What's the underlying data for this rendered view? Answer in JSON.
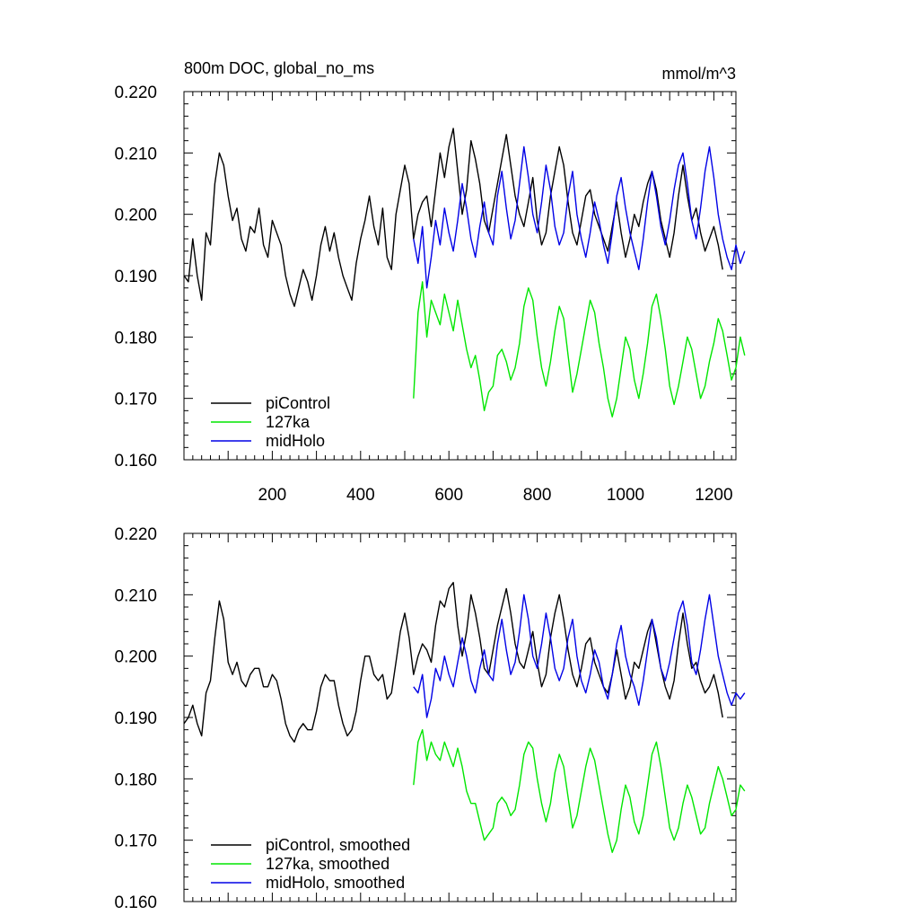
{
  "chart_data": [
    {
      "type": "line",
      "title": "800m DOC, global_no_ms",
      "units": "mmol/m^3",
      "xlim": [
        0,
        1250
      ],
      "ylim": [
        0.16,
        0.22
      ],
      "xticks": [
        200,
        400,
        600,
        800,
        1000,
        1200
      ],
      "xtick_labels": [
        "200",
        "400",
        "600",
        "800",
        "1000",
        "1200"
      ],
      "yticks": [
        0.16,
        0.17,
        0.18,
        0.19,
        0.2,
        0.21,
        0.22
      ],
      "ytick_labels": [
        "0.160",
        "0.170",
        "0.180",
        "0.190",
        "0.200",
        "0.210",
        "0.220"
      ],
      "legend": "bottom-left",
      "series": [
        {
          "name": "piControl",
          "color": "#000000",
          "x_start": 0,
          "x_step": 10,
          "values": [
            0.19,
            0.189,
            0.196,
            0.19,
            0.186,
            0.197,
            0.195,
            0.205,
            0.21,
            0.208,
            0.203,
            0.199,
            0.201,
            0.196,
            0.194,
            0.198,
            0.197,
            0.201,
            0.195,
            0.193,
            0.199,
            0.197,
            0.195,
            0.19,
            0.187,
            0.185,
            0.188,
            0.191,
            0.189,
            0.186,
            0.19,
            0.195,
            0.198,
            0.194,
            0.197,
            0.193,
            0.19,
            0.188,
            0.186,
            0.192,
            0.196,
            0.199,
            0.203,
            0.198,
            0.195,
            0.201,
            0.193,
            0.191,
            0.2,
            0.204,
            0.208,
            0.205,
            0.196,
            0.2,
            0.202,
            0.203,
            0.198,
            0.204,
            0.21,
            0.206,
            0.211,
            0.214,
            0.207,
            0.2,
            0.204,
            0.212,
            0.209,
            0.205,
            0.199,
            0.197,
            0.201,
            0.205,
            0.209,
            0.213,
            0.208,
            0.203,
            0.2,
            0.198,
            0.202,
            0.206,
            0.199,
            0.195,
            0.197,
            0.203,
            0.207,
            0.211,
            0.208,
            0.202,
            0.197,
            0.195,
            0.199,
            0.203,
            0.204,
            0.2,
            0.198,
            0.196,
            0.194,
            0.198,
            0.202,
            0.197,
            0.193,
            0.196,
            0.2,
            0.198,
            0.202,
            0.205,
            0.207,
            0.204,
            0.199,
            0.196,
            0.193,
            0.197,
            0.203,
            0.208,
            0.203,
            0.199,
            0.201,
            0.197,
            0.194,
            0.196,
            0.198,
            0.195,
            0.191
          ]
        },
        {
          "name": "127ka",
          "color": "#00e600",
          "x_start": 520,
          "x_step": 10,
          "values": [
            0.17,
            0.184,
            0.189,
            0.18,
            0.186,
            0.184,
            0.182,
            0.187,
            0.184,
            0.181,
            0.186,
            0.182,
            0.178,
            0.175,
            0.177,
            0.173,
            0.168,
            0.171,
            0.172,
            0.177,
            0.178,
            0.176,
            0.173,
            0.175,
            0.179,
            0.185,
            0.188,
            0.186,
            0.18,
            0.175,
            0.172,
            0.176,
            0.181,
            0.185,
            0.183,
            0.177,
            0.171,
            0.174,
            0.178,
            0.182,
            0.186,
            0.184,
            0.179,
            0.175,
            0.17,
            0.167,
            0.17,
            0.175,
            0.18,
            0.178,
            0.173,
            0.17,
            0.174,
            0.179,
            0.185,
            0.187,
            0.183,
            0.178,
            0.172,
            0.169,
            0.172,
            0.176,
            0.18,
            0.178,
            0.174,
            0.17,
            0.172,
            0.176,
            0.179,
            0.183,
            0.181,
            0.177,
            0.173,
            0.175,
            0.18,
            0.177
          ]
        },
        {
          "name": "midHolo",
          "color": "#0000e6",
          "x_start": 520,
          "x_step": 10,
          "values": [
            0.196,
            0.192,
            0.198,
            0.188,
            0.193,
            0.199,
            0.195,
            0.201,
            0.197,
            0.194,
            0.199,
            0.205,
            0.201,
            0.196,
            0.193,
            0.198,
            0.202,
            0.197,
            0.195,
            0.203,
            0.207,
            0.201,
            0.196,
            0.199,
            0.205,
            0.211,
            0.206,
            0.2,
            0.197,
            0.202,
            0.208,
            0.204,
            0.198,
            0.195,
            0.197,
            0.203,
            0.207,
            0.2,
            0.196,
            0.193,
            0.197,
            0.202,
            0.199,
            0.195,
            0.192,
            0.197,
            0.203,
            0.206,
            0.201,
            0.197,
            0.194,
            0.191,
            0.196,
            0.202,
            0.207,
            0.203,
            0.198,
            0.195,
            0.199,
            0.204,
            0.208,
            0.21,
            0.205,
            0.199,
            0.196,
            0.201,
            0.207,
            0.211,
            0.206,
            0.2,
            0.196,
            0.193,
            0.191,
            0.195,
            0.192,
            0.194
          ]
        }
      ]
    },
    {
      "type": "line",
      "title": "",
      "xlim": [
        0,
        1250
      ],
      "ylim": [
        0.16,
        0.22
      ],
      "yticks": [
        0.16,
        0.17,
        0.18,
        0.19,
        0.2,
        0.21,
        0.22
      ],
      "ytick_labels": [
        "0.160",
        "0.170",
        "0.180",
        "0.190",
        "0.200",
        "0.210",
        "0.220"
      ],
      "legend": "bottom-left",
      "series": [
        {
          "name": "piControl, smoothed",
          "color": "#000000",
          "x_start": 0,
          "x_step": 10,
          "values": [
            0.189,
            0.19,
            0.192,
            0.189,
            0.187,
            0.194,
            0.196,
            0.203,
            0.209,
            0.206,
            0.199,
            0.197,
            0.199,
            0.196,
            0.195,
            0.197,
            0.198,
            0.198,
            0.195,
            0.195,
            0.197,
            0.196,
            0.193,
            0.189,
            0.187,
            0.186,
            0.188,
            0.189,
            0.188,
            0.188,
            0.191,
            0.195,
            0.197,
            0.196,
            0.196,
            0.192,
            0.189,
            0.187,
            0.188,
            0.191,
            0.196,
            0.2,
            0.2,
            0.197,
            0.196,
            0.197,
            0.193,
            0.194,
            0.199,
            0.204,
            0.207,
            0.203,
            0.197,
            0.2,
            0.202,
            0.201,
            0.199,
            0.205,
            0.209,
            0.208,
            0.211,
            0.212,
            0.205,
            0.2,
            0.204,
            0.21,
            0.207,
            0.203,
            0.198,
            0.197,
            0.201,
            0.205,
            0.208,
            0.211,
            0.207,
            0.202,
            0.199,
            0.198,
            0.201,
            0.204,
            0.199,
            0.195,
            0.197,
            0.203,
            0.207,
            0.21,
            0.206,
            0.201,
            0.197,
            0.195,
            0.198,
            0.202,
            0.203,
            0.199,
            0.197,
            0.195,
            0.194,
            0.197,
            0.201,
            0.197,
            0.193,
            0.195,
            0.199,
            0.198,
            0.201,
            0.204,
            0.206,
            0.202,
            0.198,
            0.195,
            0.193,
            0.196,
            0.202,
            0.207,
            0.202,
            0.198,
            0.199,
            0.196,
            0.194,
            0.195,
            0.197,
            0.194,
            0.19
          ]
        },
        {
          "name": "127ka, smoothed",
          "color": "#00e600",
          "x_start": 520,
          "x_step": 10,
          "values": [
            0.179,
            0.186,
            0.188,
            0.183,
            0.186,
            0.184,
            0.183,
            0.186,
            0.184,
            0.182,
            0.185,
            0.182,
            0.178,
            0.176,
            0.176,
            0.173,
            0.17,
            0.171,
            0.172,
            0.176,
            0.177,
            0.176,
            0.174,
            0.175,
            0.179,
            0.184,
            0.186,
            0.185,
            0.18,
            0.176,
            0.173,
            0.176,
            0.181,
            0.184,
            0.182,
            0.177,
            0.172,
            0.174,
            0.178,
            0.182,
            0.185,
            0.183,
            0.179,
            0.175,
            0.171,
            0.168,
            0.17,
            0.175,
            0.179,
            0.177,
            0.173,
            0.171,
            0.174,
            0.179,
            0.184,
            0.186,
            0.182,
            0.177,
            0.172,
            0.17,
            0.172,
            0.176,
            0.179,
            0.177,
            0.174,
            0.171,
            0.172,
            0.176,
            0.179,
            0.182,
            0.18,
            0.177,
            0.174,
            0.175,
            0.179,
            0.178
          ]
        },
        {
          "name": "midHolo, smoothed",
          "color": "#0000e6",
          "x_start": 520,
          "x_step": 10,
          "values": [
            0.195,
            0.194,
            0.197,
            0.19,
            0.193,
            0.198,
            0.196,
            0.2,
            0.197,
            0.195,
            0.199,
            0.203,
            0.2,
            0.196,
            0.194,
            0.198,
            0.201,
            0.197,
            0.196,
            0.202,
            0.206,
            0.201,
            0.197,
            0.199,
            0.204,
            0.21,
            0.206,
            0.2,
            0.198,
            0.202,
            0.207,
            0.203,
            0.198,
            0.196,
            0.198,
            0.203,
            0.206,
            0.2,
            0.196,
            0.194,
            0.197,
            0.201,
            0.199,
            0.195,
            0.193,
            0.197,
            0.202,
            0.205,
            0.2,
            0.197,
            0.195,
            0.192,
            0.196,
            0.201,
            0.206,
            0.203,
            0.198,
            0.196,
            0.199,
            0.203,
            0.207,
            0.209,
            0.205,
            0.199,
            0.197,
            0.201,
            0.206,
            0.21,
            0.205,
            0.2,
            0.197,
            0.194,
            0.192,
            0.194,
            0.193,
            0.194
          ]
        }
      ]
    }
  ]
}
